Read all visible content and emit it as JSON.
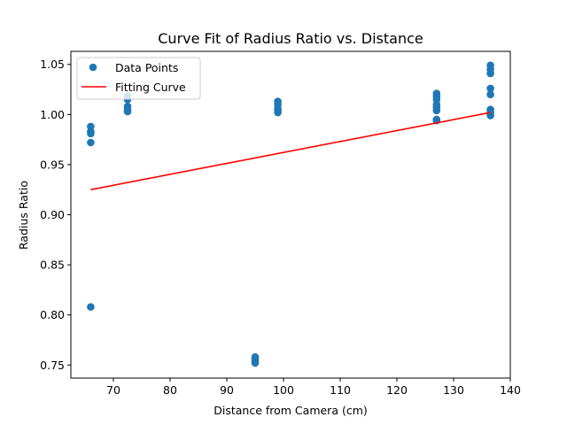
{
  "chart_data": {
    "type": "scatter",
    "title": "Curve Fit of Radius Ratio vs. Distance",
    "xlabel": "Distance from Camera (cm)",
    "ylabel": "Radius Ratio",
    "xlim": [
      62.5,
      140
    ],
    "ylim": [
      0.737,
      1.063
    ],
    "xticks": [
      70,
      80,
      90,
      100,
      110,
      120,
      130,
      140
    ],
    "xtick_labels": [
      "70",
      "80",
      "90",
      "100",
      "110",
      "120",
      "130",
      "140"
    ],
    "yticks": [
      0.75,
      0.8,
      0.85,
      0.9,
      0.95,
      1.0,
      1.05
    ],
    "ytick_labels": [
      "0.75",
      "0.80",
      "0.85",
      "0.90",
      "0.95",
      "1.00",
      "1.05"
    ],
    "grid": false,
    "legend_position": "upper-left",
    "series": [
      {
        "name": "Data Points",
        "kind": "scatter",
        "color": "#1f77b4",
        "x": [
          66,
          66,
          66,
          66,
          66,
          72.5,
          72.5,
          72.5,
          72.5,
          72.5,
          95,
          95,
          95,
          95,
          99,
          99,
          99,
          99,
          99,
          127,
          127,
          127,
          127,
          127,
          127,
          127,
          127,
          136.5,
          136.5,
          136.5,
          136.5,
          136.5,
          136.5,
          136.5,
          136.5
        ],
        "y": [
          0.988,
          0.983,
          0.981,
          0.972,
          0.808,
          1.018,
          1.015,
          1.008,
          1.005,
          1.003,
          0.758,
          0.756,
          0.754,
          0.752,
          1.013,
          1.01,
          1.006,
          1.004,
          1.002,
          1.021,
          1.018,
          1.015,
          1.01,
          1.007,
          1.004,
          0.995,
          0.994,
          1.049,
          1.045,
          1.041,
          1.026,
          1.02,
          1.005,
          1.002,
          0.999
        ]
      },
      {
        "name": "Fitting Curve",
        "kind": "line",
        "color": "#ff0000",
        "x": [
          66,
          136.5
        ],
        "y": [
          0.925,
          1.002
        ]
      }
    ]
  }
}
